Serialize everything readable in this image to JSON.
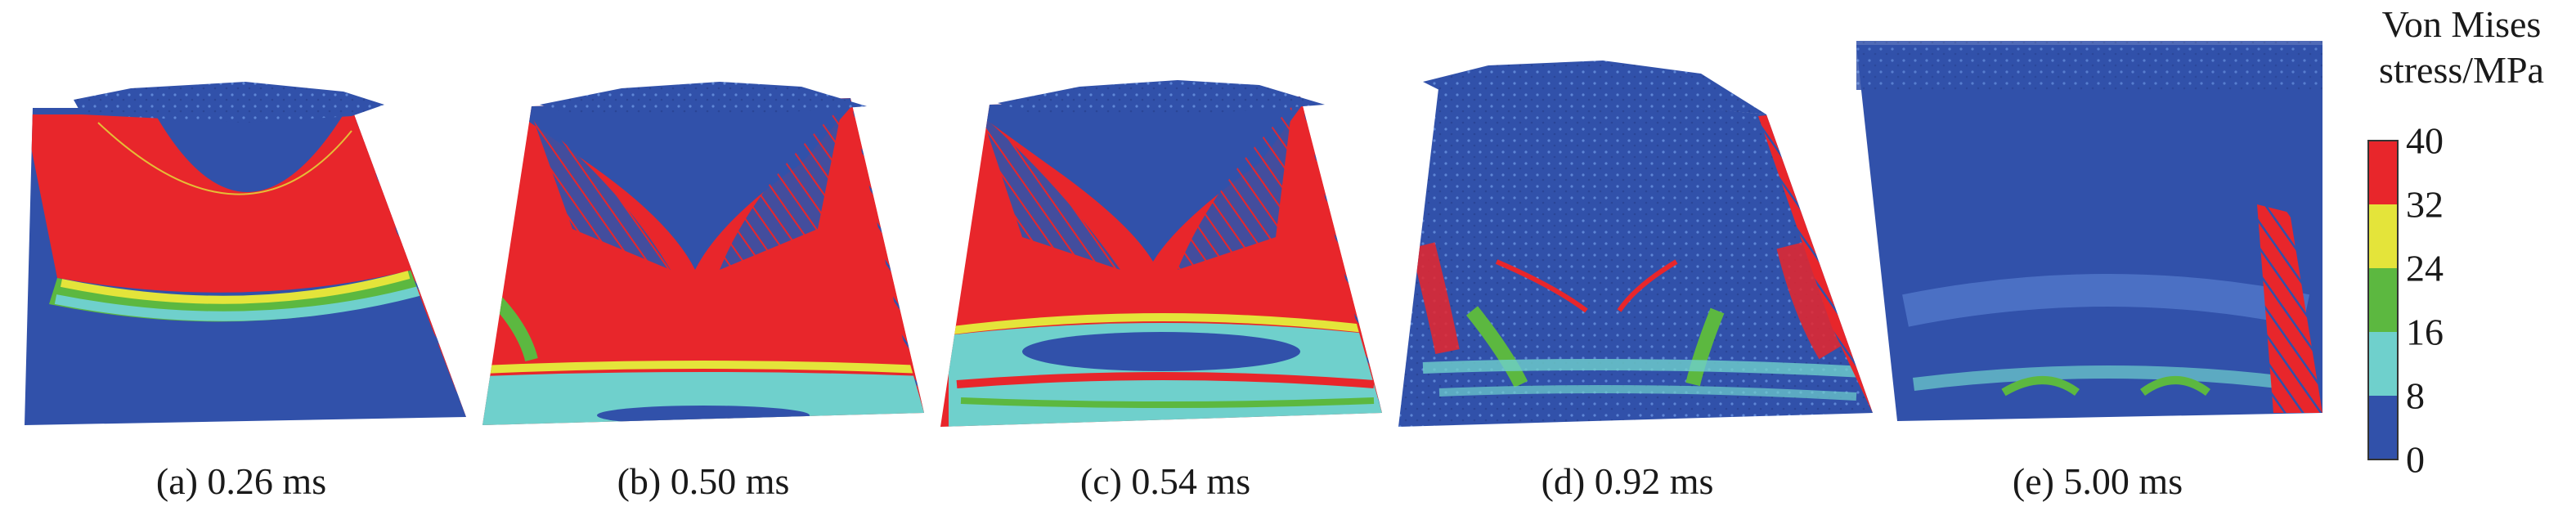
{
  "panels": [
    {
      "label": "(a) 0.26 ms",
      "time_ms": 0.26
    },
    {
      "label": "(b) 0.50 ms",
      "time_ms": 0.5
    },
    {
      "label": "(c) 0.54 ms",
      "time_ms": 0.54
    },
    {
      "label": "(d) 0.92 ms",
      "time_ms": 0.92
    },
    {
      "label": "(e) 5.00 ms",
      "time_ms": 5.0
    }
  ],
  "legend": {
    "title_line1": "Von Mises",
    "title_line2": "stress/MPa",
    "ticks": [
      "40",
      "32",
      "24",
      "16",
      "8",
      "0"
    ],
    "colors": {
      "band_32_40": "#e8262b",
      "band_24_32": "#e4e43a",
      "band_16_24": "#5cb840",
      "band_8_16": "#6fd0cc",
      "band_0_8": "#3151aa"
    }
  }
}
